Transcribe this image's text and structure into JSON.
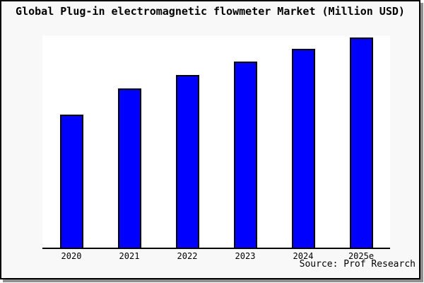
{
  "chart_data": {
    "type": "bar",
    "title": "Global Plug-in electromagnetic flowmeter Market (Million USD)",
    "categories": [
      "2020",
      "2021",
      "2022",
      "2023",
      "2024",
      "2025e"
    ],
    "values": [
      100,
      120,
      130,
      140,
      150,
      158.5
    ],
    "values_note": "Y-axis has no tick labels or gridlines in the image; values are relative estimates read from bar heights with 2020 normalized to 100.",
    "xlabel": "",
    "ylabel": "",
    "ylim": [
      0,
      160
    ],
    "grid": false,
    "legend": false,
    "y_axis_labels_visible": false,
    "source_label": "Source: Prof Research"
  },
  "colors": {
    "bar_fill": "#0000ff",
    "bar_border": "#000000",
    "frame_background": "#f8f8f8",
    "plot_background": "#ffffff",
    "axis": "#000000",
    "text": "#000000",
    "frame_border": "#000000",
    "frame_shadow": "#8f8f8f"
  }
}
